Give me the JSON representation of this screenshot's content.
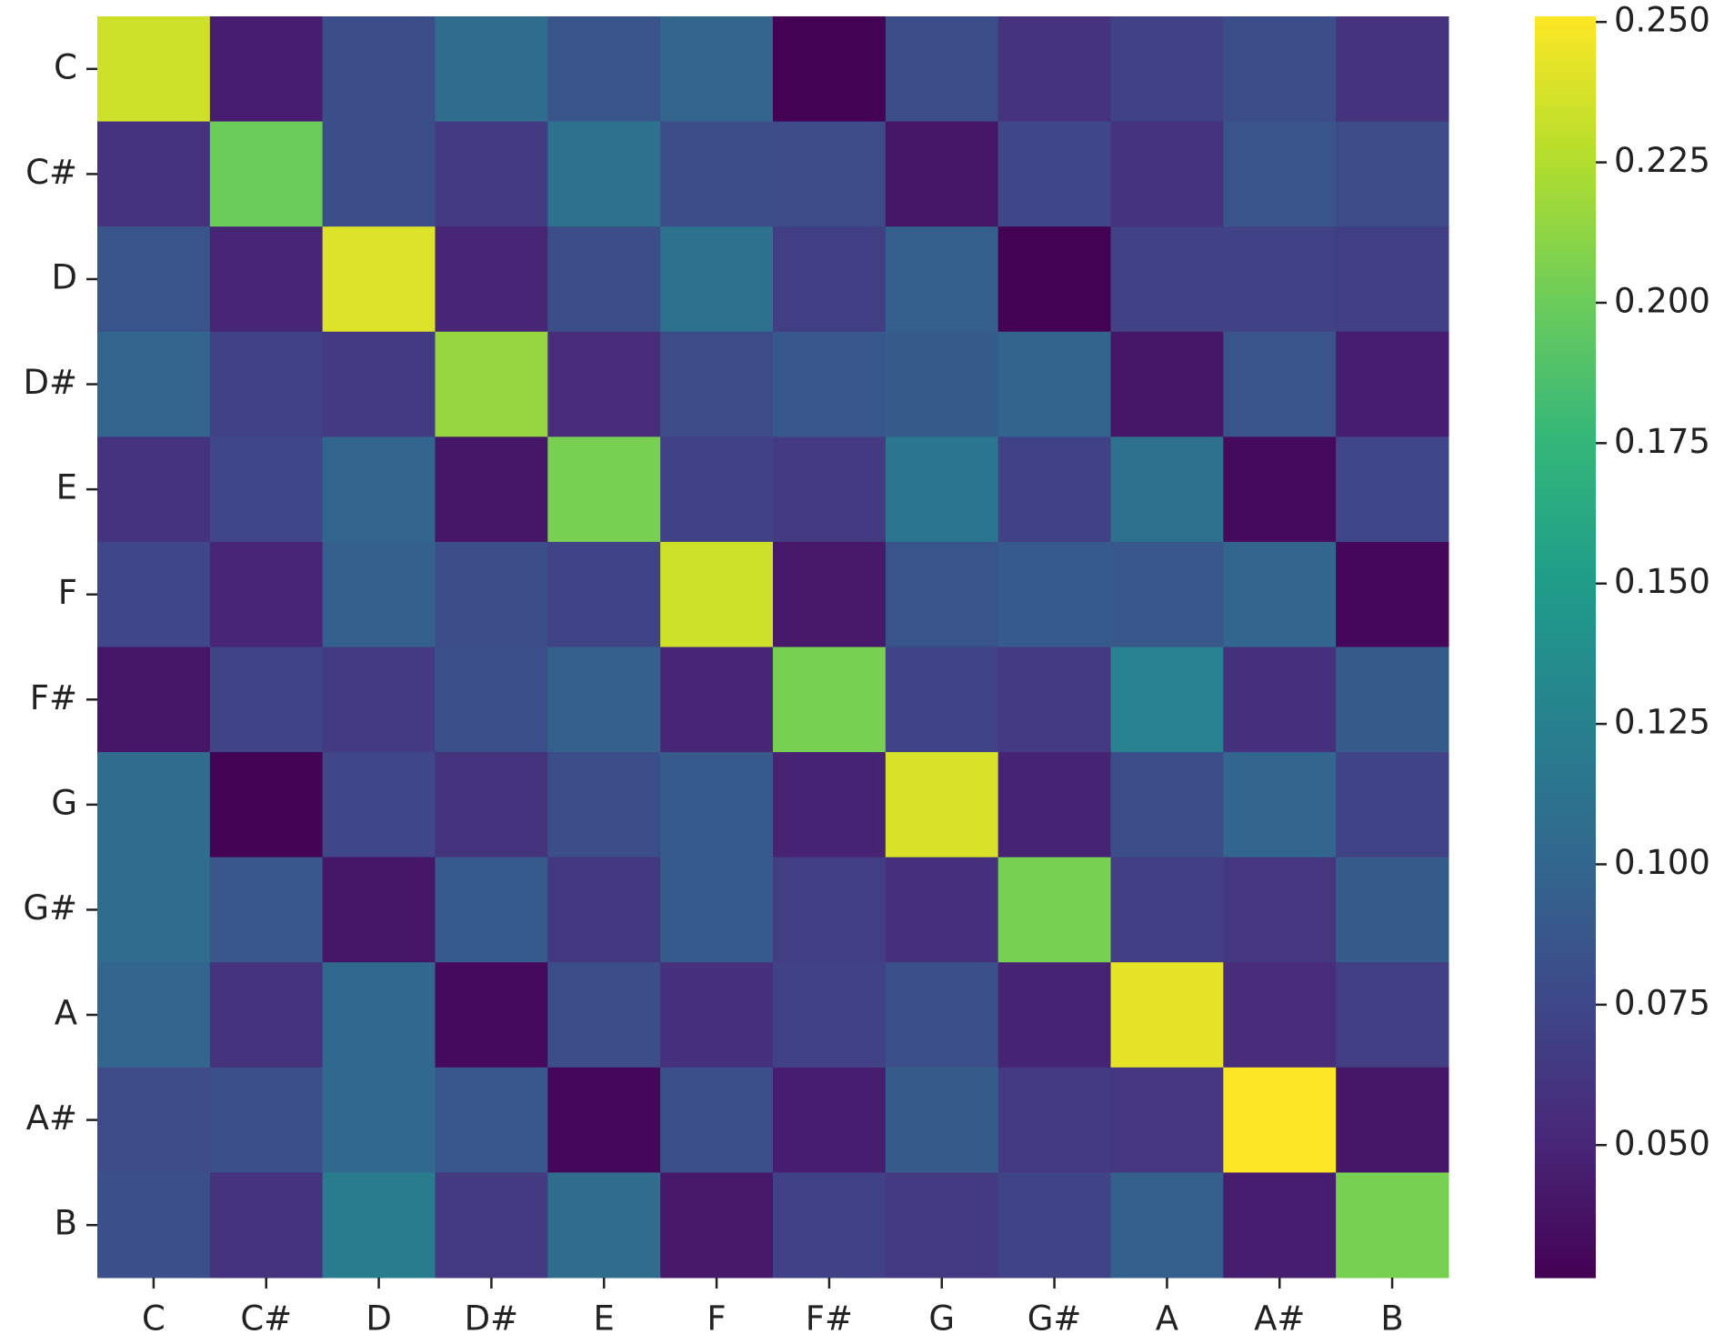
{
  "chart_data": {
    "type": "heatmap",
    "x_categories": [
      "C",
      "C#",
      "D",
      "D#",
      "E",
      "F",
      "F#",
      "G",
      "G#",
      "A",
      "A#",
      "B"
    ],
    "y_categories": [
      "C",
      "C#",
      "D",
      "D#",
      "E",
      "F",
      "F#",
      "G",
      "G#",
      "A",
      "A#",
      "B"
    ],
    "values": [
      [
        0.235,
        0.045,
        0.08,
        0.105,
        0.085,
        0.1,
        0.027,
        0.08,
        0.06,
        0.07,
        0.08,
        0.06
      ],
      [
        0.06,
        0.2,
        0.08,
        0.065,
        0.11,
        0.08,
        0.078,
        0.04,
        0.075,
        0.06,
        0.085,
        0.078
      ],
      [
        0.085,
        0.05,
        0.24,
        0.05,
        0.08,
        0.11,
        0.068,
        0.095,
        0.027,
        0.07,
        0.07,
        0.068
      ],
      [
        0.1,
        0.07,
        0.065,
        0.215,
        0.055,
        0.078,
        0.088,
        0.092,
        0.098,
        0.04,
        0.085,
        0.045
      ],
      [
        0.06,
        0.075,
        0.1,
        0.04,
        0.205,
        0.07,
        0.065,
        0.115,
        0.07,
        0.11,
        0.032,
        0.075
      ],
      [
        0.075,
        0.05,
        0.095,
        0.08,
        0.072,
        0.235,
        0.042,
        0.085,
        0.09,
        0.088,
        0.1,
        0.03
      ],
      [
        0.04,
        0.072,
        0.065,
        0.082,
        0.095,
        0.05,
        0.205,
        0.072,
        0.065,
        0.125,
        0.058,
        0.092
      ],
      [
        0.105,
        0.028,
        0.075,
        0.06,
        0.08,
        0.09,
        0.048,
        0.238,
        0.048,
        0.08,
        0.1,
        0.072
      ],
      [
        0.105,
        0.088,
        0.04,
        0.09,
        0.063,
        0.09,
        0.068,
        0.058,
        0.205,
        0.068,
        0.062,
        0.092
      ],
      [
        0.1,
        0.06,
        0.102,
        0.032,
        0.08,
        0.058,
        0.07,
        0.082,
        0.048,
        0.243,
        0.055,
        0.068
      ],
      [
        0.078,
        0.082,
        0.102,
        0.088,
        0.03,
        0.082,
        0.045,
        0.092,
        0.065,
        0.062,
        0.251,
        0.04
      ],
      [
        0.082,
        0.06,
        0.12,
        0.065,
        0.105,
        0.042,
        0.07,
        0.065,
        0.072,
        0.095,
        0.045,
        0.205
      ]
    ],
    "colormap": "viridis",
    "clim": [
      0.0264,
      0.251
    ],
    "cticks": [
      {
        "value": 0.05,
        "label": "0.050"
      },
      {
        "value": 0.075,
        "label": "0.075"
      },
      {
        "value": 0.1,
        "label": "0.100"
      },
      {
        "value": 0.125,
        "label": "0.125"
      },
      {
        "value": 0.15,
        "label": "0.150"
      },
      {
        "value": 0.175,
        "label": "0.175"
      },
      {
        "value": 0.2,
        "label": "0.200"
      },
      {
        "value": 0.225,
        "label": "0.225"
      },
      {
        "value": 0.25,
        "label": "0.250"
      }
    ]
  }
}
